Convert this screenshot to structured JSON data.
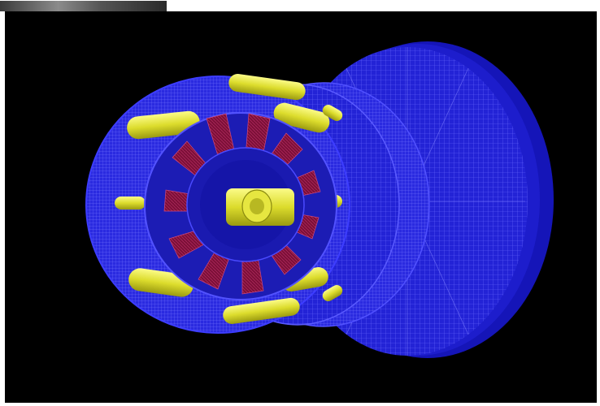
{
  "image": {
    "subject": "cylindrical-motor-mesh",
    "colors": {
      "background": "#000000",
      "mesh_blue": "#2424d8",
      "mesh_line": "#6a6aff",
      "rotor_red": "#8a1238",
      "magnet_yellow": "#e4e43a"
    }
  }
}
